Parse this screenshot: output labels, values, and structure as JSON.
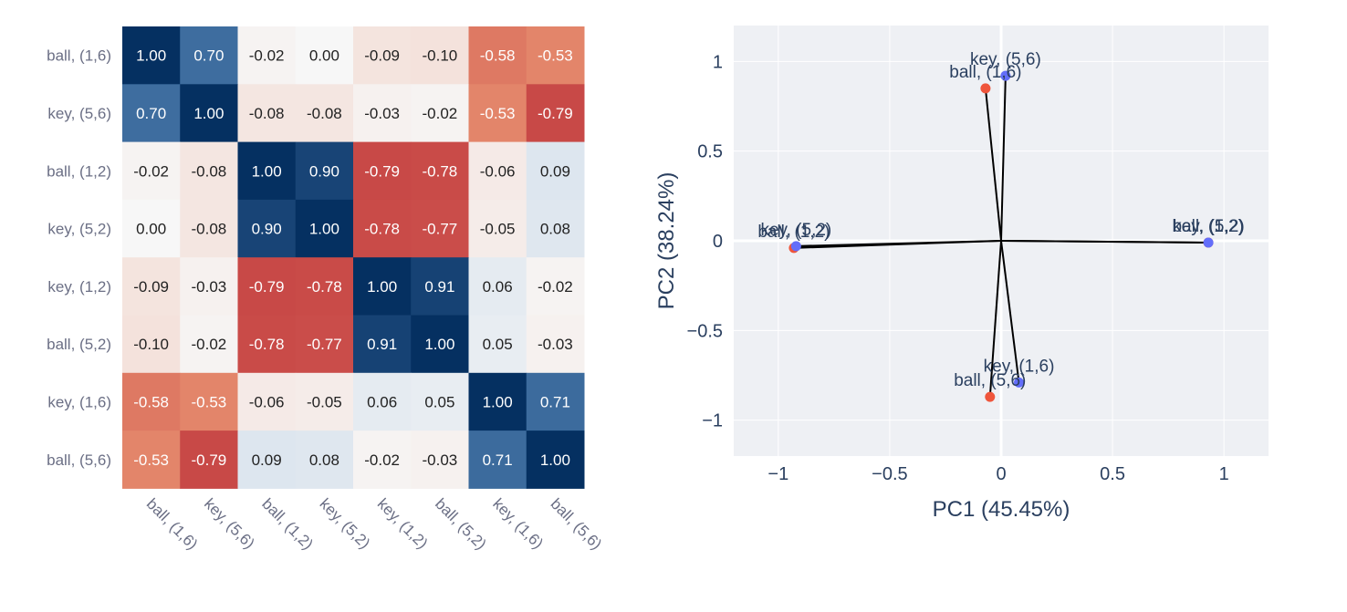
{
  "chart_data": [
    {
      "type": "heatmap",
      "title": "",
      "row_labels": [
        "ball, (1,6)",
        "key, (5,6)",
        "ball, (1,2)",
        "key, (5,2)",
        "key, (1,2)",
        "ball, (5,2)",
        "key, (1,6)",
        "ball, (5,6)"
      ],
      "col_labels": [
        "ball, (1,6)",
        "key, (5,6)",
        "ball, (1,2)",
        "key, (5,2)",
        "key, (1,2)",
        "ball, (5,2)",
        "key, (1,6)",
        "ball, (5,6)"
      ],
      "values": [
        [
          1.0,
          0.7,
          -0.02,
          0.0,
          -0.09,
          -0.1,
          -0.58,
          -0.53
        ],
        [
          0.7,
          1.0,
          -0.08,
          -0.08,
          -0.03,
          -0.02,
          -0.53,
          -0.79
        ],
        [
          -0.02,
          -0.08,
          1.0,
          0.9,
          -0.79,
          -0.78,
          -0.06,
          0.09
        ],
        [
          0.0,
          -0.08,
          0.9,
          1.0,
          -0.78,
          -0.77,
          -0.05,
          0.08
        ],
        [
          -0.09,
          -0.03,
          -0.79,
          -0.78,
          1.0,
          0.91,
          0.06,
          -0.02
        ],
        [
          -0.1,
          -0.02,
          -0.78,
          -0.77,
          0.91,
          1.0,
          0.05,
          -0.03
        ],
        [
          -0.58,
          -0.53,
          -0.06,
          -0.05,
          0.06,
          0.05,
          1.0,
          0.71
        ],
        [
          -0.53,
          -0.79,
          0.09,
          0.08,
          -0.02,
          -0.03,
          0.71,
          1.0
        ]
      ],
      "value_range": [
        -1,
        1
      ],
      "colorscale": {
        "negative": "#b2182b",
        "zero": "#f7f7f7",
        "positive": "#053061"
      }
    },
    {
      "type": "scatter",
      "title": "",
      "xlabel": "PC1 (45.45%)",
      "ylabel": "PC2 (38.24%)",
      "xlim": [
        -1.2,
        1.2
      ],
      "ylim": [
        -1.2,
        1.2
      ],
      "xticks": [
        -1,
        -0.5,
        0,
        0.5,
        1
      ],
      "xtick_labels": [
        "−1",
        "−0.5",
        "0",
        "0.5",
        "1"
      ],
      "yticks": [
        -1,
        -0.5,
        0,
        0.5,
        1
      ],
      "ytick_labels": [
        "−1",
        "−0.5",
        "0",
        "0.5",
        "1"
      ],
      "grid": true,
      "background": "#eef0f4",
      "series": [
        {
          "name": "ball",
          "color": "#ef553b",
          "points": [
            {
              "label": "ball, (1,6)",
              "x": -0.07,
              "y": 0.85
            },
            {
              "label": "ball, (1,2)",
              "x": -0.93,
              "y": -0.04
            },
            {
              "label": "ball, (5,2)",
              "x": 0.93,
              "y": -0.01
            },
            {
              "label": "ball, (5,6)",
              "x": -0.05,
              "y": -0.87
            }
          ]
        },
        {
          "name": "key",
          "color": "#636efa",
          "points": [
            {
              "label": "key, (5,6)",
              "x": 0.02,
              "y": 0.92
            },
            {
              "label": "key, (5,2)",
              "x": -0.92,
              "y": -0.03
            },
            {
              "label": "key, (1,2)",
              "x": 0.93,
              "y": -0.01
            },
            {
              "label": "key, (1,6)",
              "x": 0.08,
              "y": -0.79
            }
          ]
        }
      ]
    }
  ]
}
